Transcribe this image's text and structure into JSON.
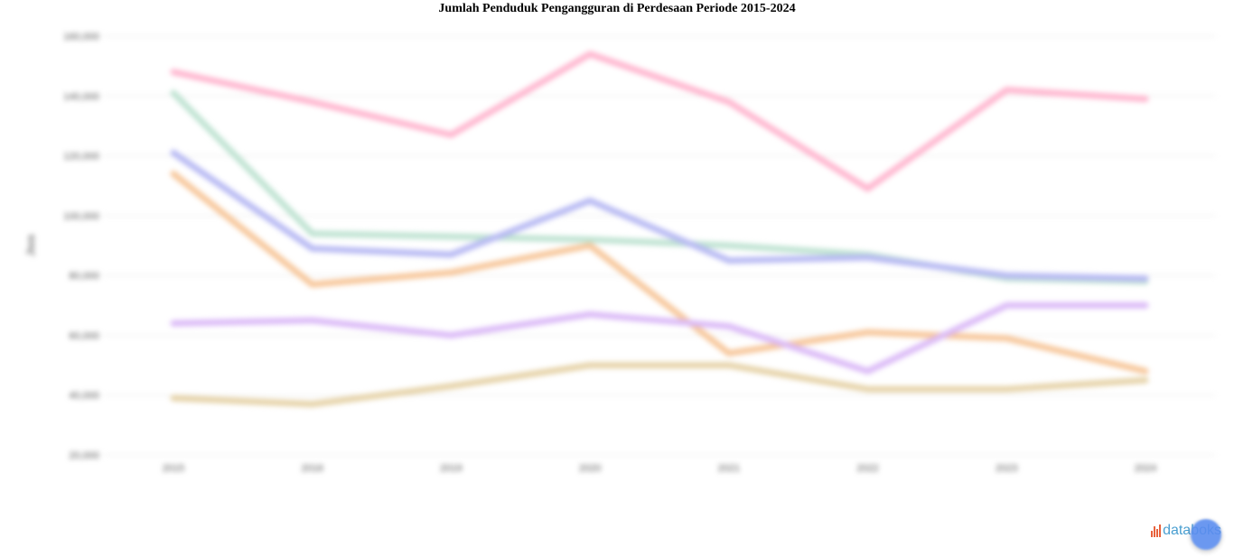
{
  "chart_data": {
    "type": "line",
    "title": "Jumlah Penduduk Pengangguran di Perdesaan Periode 2015-2024",
    "xlabel": "",
    "ylabel": "Jiwa",
    "categories": [
      "2015",
      "2016",
      "2019",
      "2020",
      "2021",
      "2022",
      "2023",
      "2024"
    ],
    "ylim": [
      20000,
      160000
    ],
    "yticks": [
      20000,
      40000,
      60000,
      80000,
      100000,
      120000,
      140000,
      160000
    ],
    "ytick_labels": [
      "20,000",
      "40,000",
      "60,000",
      "80,000",
      "100,000",
      "120,000",
      "140,000",
      "160,000"
    ],
    "grid": true,
    "legend": "none",
    "series": [
      {
        "color": "#ffb6cf",
        "values": [
          148000,
          138000,
          127000,
          154000,
          138000,
          109000,
          142000,
          139000
        ]
      },
      {
        "color": "#bfe3d2",
        "values": [
          141000,
          94000,
          93000,
          92000,
          90000,
          87000,
          79000,
          78000
        ]
      },
      {
        "color": "#b7b9f3",
        "values": [
          121000,
          89000,
          87000,
          105000,
          85000,
          86000,
          80000,
          79000
        ]
      },
      {
        "color": "#f7c79b",
        "values": [
          114000,
          77000,
          81000,
          90000,
          54000,
          61000,
          59000,
          48000
        ]
      },
      {
        "color": "#dbbaf7",
        "values": [
          64000,
          65000,
          60000,
          67000,
          63000,
          48000,
          70000,
          70000
        ]
      },
      {
        "color": "#e6d3a9",
        "values": [
          39000,
          37000,
          43000,
          50000,
          50000,
          42000,
          42000,
          45000
        ]
      }
    ]
  },
  "brand": {
    "name": "databoks",
    "icon": "databoks-bars-icon",
    "accent": "#e8613c",
    "text_color": "#4a9fd1"
  },
  "help": {
    "icon": "chat-bubble-icon",
    "color": "#5b8def"
  }
}
